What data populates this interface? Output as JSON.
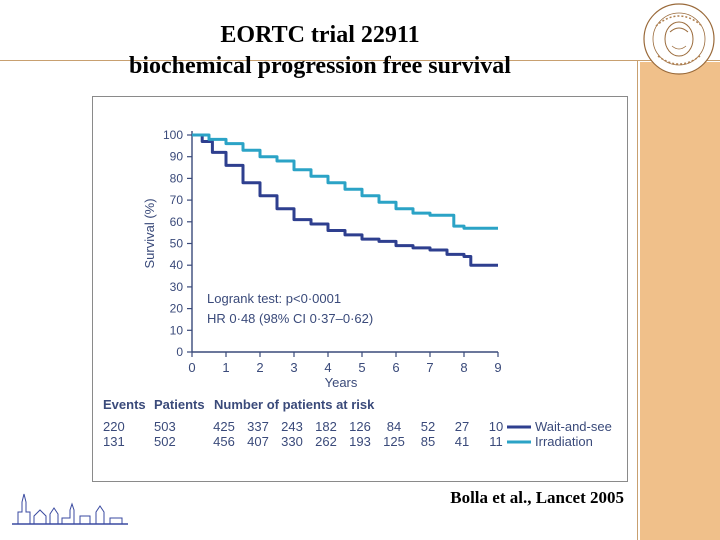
{
  "slide": {
    "title_line1": "EORTC trial 22911",
    "title_line2": "biochemical progression free survival",
    "citation": "Bolla et al., Lancet 2005"
  },
  "colors": {
    "wait": "#2e3f8f",
    "irradiation": "#2ba3c6",
    "axis": "#3a4a7a",
    "sidebar": "#f0c08a"
  },
  "chart_data": {
    "type": "line",
    "xlabel": "Years",
    "ylabel": "Survival (%)",
    "xlim": [
      0,
      9
    ],
    "ylim": [
      0,
      100
    ],
    "xticks": [
      "0",
      "1",
      "2",
      "3",
      "4",
      "5",
      "6",
      "7",
      "8",
      "9"
    ],
    "yticks": [
      "0",
      "10",
      "20",
      "30",
      "40",
      "50",
      "60",
      "70",
      "80",
      "90",
      "100"
    ],
    "annotation_line1": "Logrank test: p<0·0001",
    "annotation_line2": "HR 0·48 (98% CI 0·37–0·62)",
    "series": [
      {
        "name": "Wait-and-see",
        "x": [
          0,
          0.3,
          0.6,
          1,
          1.5,
          2,
          2.5,
          3,
          3.5,
          4,
          4.5,
          5,
          5.5,
          6,
          6.5,
          7,
          7.5,
          8,
          8.2,
          9
        ],
        "values": [
          100,
          97,
          92,
          86,
          78,
          72,
          66,
          61,
          59,
          56,
          54,
          52,
          51,
          49,
          48,
          47,
          45,
          44,
          40,
          40
        ]
      },
      {
        "name": "Irradiation",
        "x": [
          0,
          0.5,
          1,
          1.5,
          2,
          2.5,
          3,
          3.5,
          4,
          4.5,
          5,
          5.5,
          6,
          6.5,
          7,
          7.5,
          7.7,
          8,
          9
        ],
        "values": [
          100,
          98,
          96,
          93,
          90,
          88,
          84,
          81,
          78,
          75,
          72,
          69,
          66,
          64,
          63,
          63,
          58,
          57,
          57
        ]
      }
    ],
    "risk_table": {
      "col_events": "Events",
      "col_patients": "Patients",
      "col_risk": "Number of patients at risk",
      "rows": [
        {
          "label": "Wait-and-see",
          "events": "220",
          "patients": "503",
          "at_risk": [
            "425",
            "337",
            "243",
            "182",
            "126",
            "84",
            "52",
            "27",
            "10"
          ]
        },
        {
          "label": "Irradiation",
          "events": "131",
          "patients": "502",
          "at_risk": [
            "456",
            "407",
            "330",
            "262",
            "193",
            "125",
            "85",
            "41",
            "11"
          ]
        }
      ]
    }
  }
}
